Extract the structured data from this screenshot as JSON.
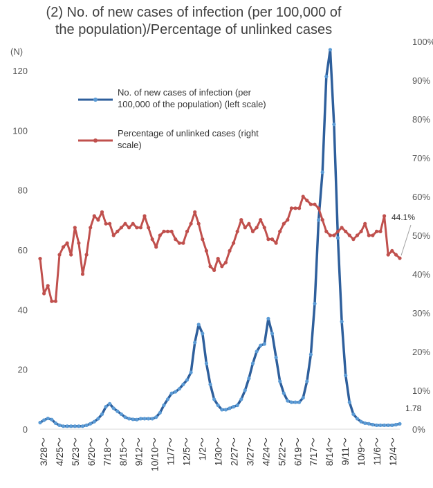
{
  "title_line1": "(2) No. of new cases of infection (per 100,000 of",
  "title_line2": "the population)/Percentage of unlinked cases",
  "chart_data": {
    "type": "line",
    "title": "(2) No. of new cases of infection (per 100,000 of the population)/Percentage of unlinked cases",
    "y_left_unit": "(N)",
    "y_left_ticks": [
      "0",
      "20",
      "40",
      "60",
      "80",
      "100",
      "120"
    ],
    "y_right_ticks": [
      "0%",
      "10%",
      "20%",
      "30%",
      "40%",
      "50%",
      "60%",
      "70%",
      "80%",
      "90%",
      "100%"
    ],
    "ylim_left": [
      0,
      120
    ],
    "ylim_right": [
      0,
      100
    ],
    "x_tick_labels": [
      "3/28～",
      "4/25～",
      "5/23～",
      "6/20～",
      "7/18～",
      "8/15～",
      "9/12～",
      "10/10～",
      "11/7～",
      "12/5～",
      "1/2～",
      "1/30～",
      "2/27～",
      "3/27～",
      "4/24～",
      "5/22～",
      "6/19～",
      "7/17～",
      "8/14～",
      "9/11～",
      "10/9～",
      "11/6～",
      "12/4～"
    ],
    "grid": false,
    "legend_placement": "top-left",
    "series": [
      {
        "name": "No. of new cases of infection (per 100,000 of the population) (left scale)",
        "axis": "left",
        "color": "#2e5f9c",
        "values": [
          2.2,
          3,
          3.6,
          3.2,
          2,
          1.3,
          1,
          1,
          1,
          1,
          1,
          1,
          1.3,
          1.8,
          2.5,
          3.5,
          5,
          7.5,
          8.5,
          7,
          6,
          5,
          4,
          3.5,
          3.3,
          3.2,
          3.5,
          3.5,
          3.5,
          3.5,
          4,
          5.5,
          8,
          10,
          12,
          12.5,
          13.5,
          15,
          16.5,
          19,
          29,
          35,
          32,
          22,
          15,
          10,
          8,
          6.5,
          6.5,
          7,
          7.5,
          8,
          10,
          13,
          17,
          22,
          26,
          28,
          28.5,
          37,
          32,
          24,
          16,
          12,
          9.5,
          9,
          9,
          9,
          10.5,
          16,
          25,
          42,
          70,
          86,
          118,
          127,
          102,
          64,
          36,
          18,
          9,
          5,
          3.5,
          2.5,
          2,
          1.8,
          1.5,
          1.3,
          1.3,
          1.3,
          1.3,
          1.3,
          1.5,
          1.78
        ]
      },
      {
        "name": "Percentage of unlinked cases (right scale)",
        "axis": "right",
        "color": "#c0504d",
        "values": [
          44,
          35,
          37,
          33,
          33,
          45,
          47,
          48,
          45,
          52,
          48,
          40,
          45,
          52,
          55,
          54,
          56,
          53,
          53,
          50,
          51,
          52,
          53,
          52,
          53,
          52,
          52,
          55,
          52,
          49,
          47,
          50,
          51,
          51,
          51,
          49,
          48,
          48,
          51,
          53,
          56,
          53,
          49,
          46,
          42,
          41,
          44,
          42,
          43,
          46,
          48,
          51,
          54,
          52,
          53,
          51,
          52,
          54,
          52,
          49,
          49,
          48,
          51,
          53,
          54,
          57,
          57,
          57,
          60,
          59,
          58,
          58,
          57,
          54,
          51,
          50,
          50,
          51,
          52,
          51,
          50,
          49,
          50,
          51,
          53,
          50,
          50,
          51,
          51,
          55,
          45,
          46,
          45,
          44.1
        ]
      }
    ],
    "annotations": [
      {
        "text": "44.1%",
        "series": "Percentage of unlinked cases (right scale)"
      },
      {
        "text": "1.78",
        "series": "No. of new cases of infection (per 100,000 of the population) (left scale)"
      }
    ]
  }
}
